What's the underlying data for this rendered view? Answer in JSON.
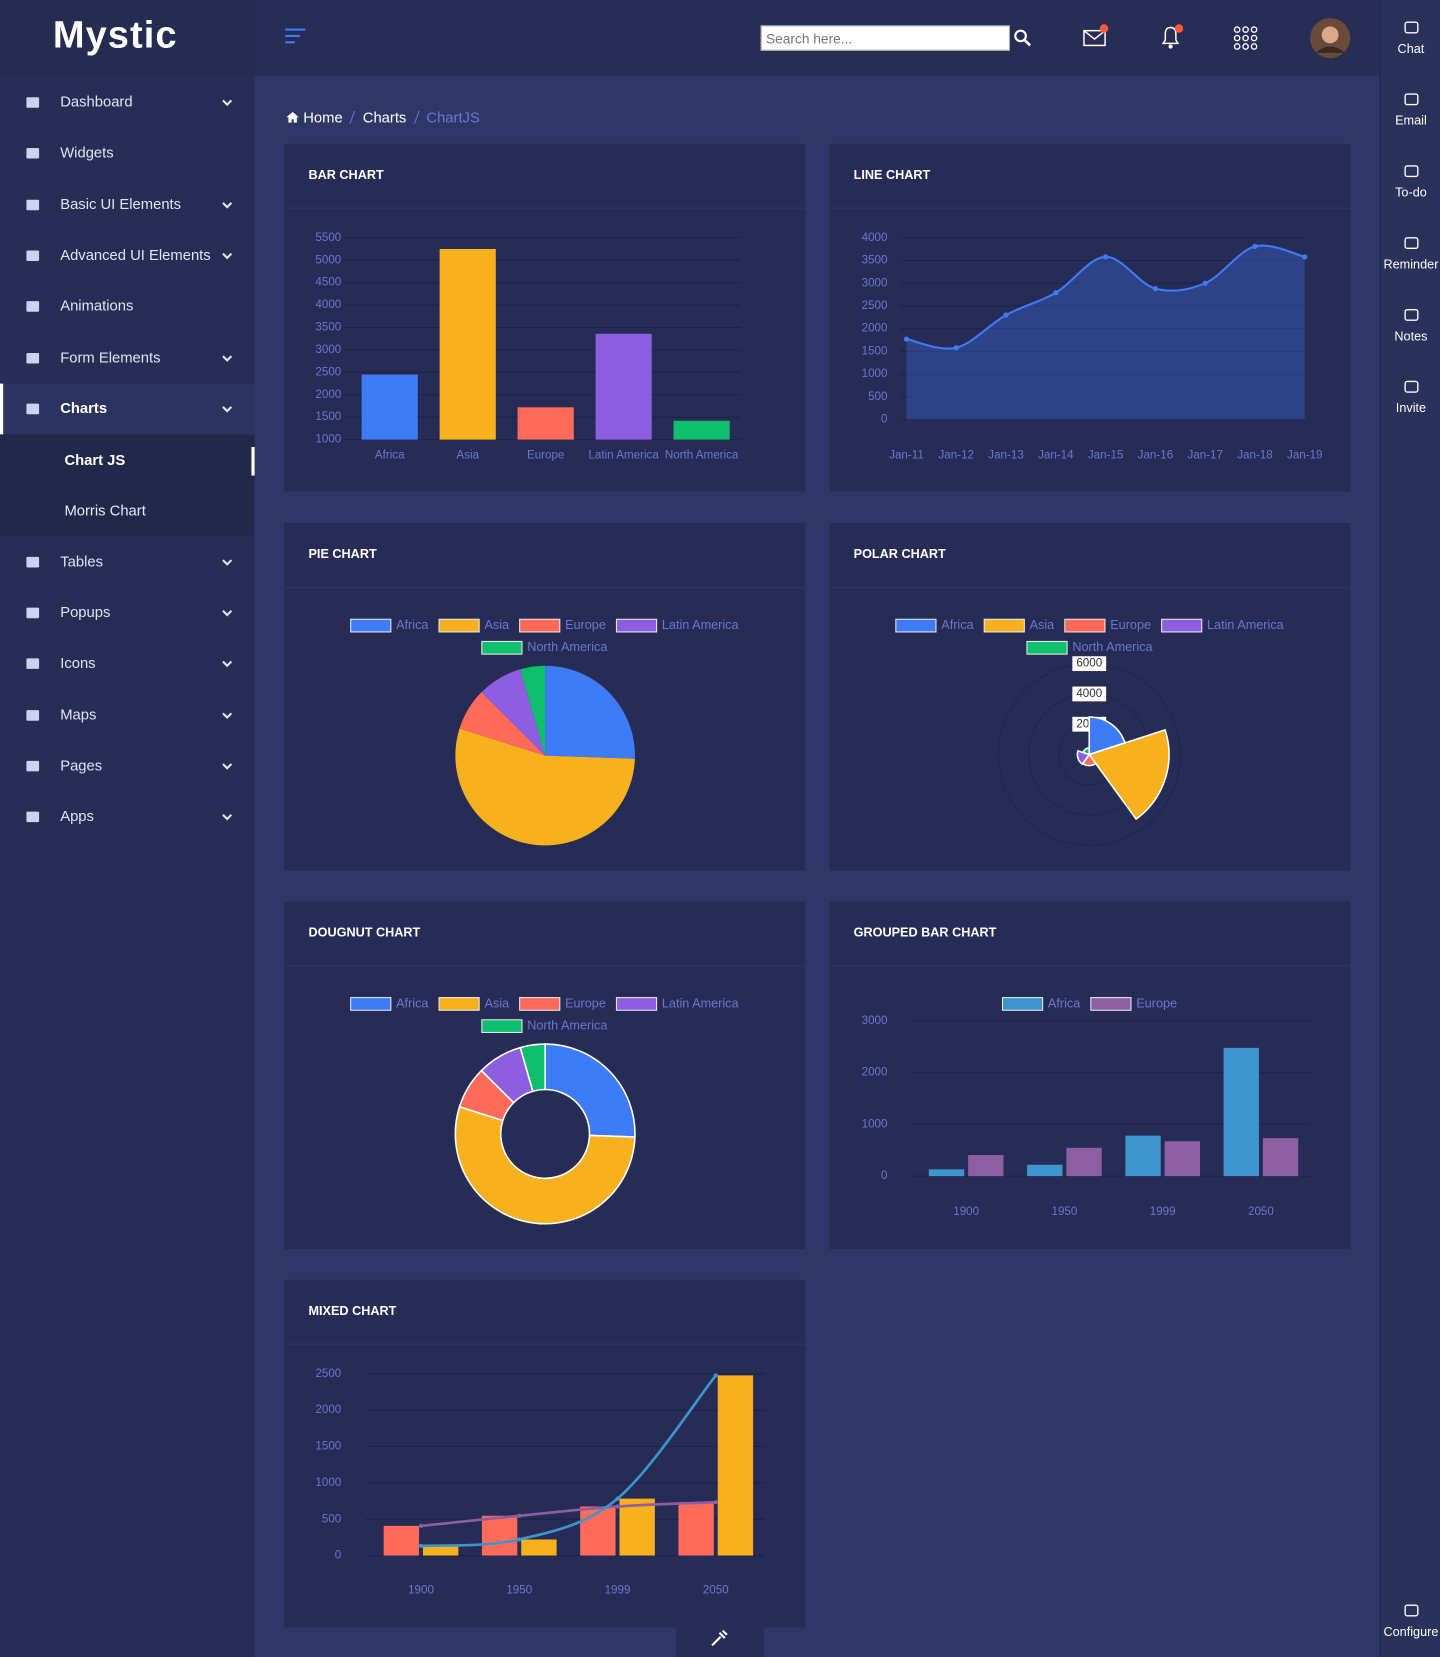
{
  "header": {
    "logo": "Mystic",
    "search_placeholder": "Search here..."
  },
  "sidebar": {
    "items": [
      "Dashboard",
      "Widgets",
      "Basic UI Elements",
      "Advanced UI Elements",
      "Animations",
      "Form Elements",
      "Charts",
      "Tables",
      "Popups",
      "Icons",
      "Maps",
      "Pages",
      "Apps"
    ],
    "submenu": [
      "Chart JS",
      "Morris Chart"
    ]
  },
  "breadcrumb": [
    "Home",
    "Charts",
    "ChartJS"
  ],
  "right_bar": [
    "Chat",
    "Email",
    "To-do",
    "Reminder",
    "Notes",
    "Invite",
    "Configure"
  ],
  "chart_data": [
    {
      "type": "bar",
      "title": "BAR CHART",
      "categories": [
        "Africa",
        "Asia",
        "Europe",
        "Latin America",
        "North America"
      ],
      "values": [
        2450,
        5250,
        1720,
        3360,
        1420
      ],
      "colors": [
        "#3e7bf7",
        "#f7b11e",
        "#ff6b5b",
        "#8e5ee0",
        "#0ebf6b"
      ],
      "ylim": [
        1000,
        5500
      ],
      "yticks": [
        1000,
        1500,
        2000,
        2500,
        3000,
        3500,
        4000,
        4500,
        5000,
        5500
      ],
      "grid": true
    },
    {
      "type": "line",
      "title": "LINE CHART",
      "categories": [
        "Jan-11",
        "Jan-12",
        "Jan-13",
        "Jan-14",
        "Jan-15",
        "Jan-16",
        "Jan-17",
        "Jan-18",
        "Jan-19"
      ],
      "values": [
        1770,
        1580,
        2300,
        2790,
        3580,
        2880,
        3000,
        3810,
        3580
      ],
      "color": "#3e7bf7",
      "fill": "rgba(62,110,230,0.35)",
      "ylim": [
        0,
        4000
      ],
      "yticks": [
        0,
        500,
        1000,
        1500,
        2000,
        2500,
        3000,
        3500,
        4000
      ],
      "grid": true
    },
    {
      "type": "pie",
      "title": "PIE CHART",
      "categories": [
        "Africa",
        "Asia",
        "Europe",
        "Latin America",
        "North America"
      ],
      "values": [
        2478,
        5267,
        734,
        784,
        433
      ],
      "colors": [
        "#3e7bf7",
        "#f7b11e",
        "#ff6b5b",
        "#8e5ee0",
        "#0ebf6b"
      ],
      "legend": "top"
    },
    {
      "type": "polar",
      "title": "POLAR CHART",
      "categories": [
        "Africa",
        "Asia",
        "Europe",
        "Latin America",
        "North America"
      ],
      "values": [
        2478,
        5267,
        734,
        784,
        433
      ],
      "colors": [
        "#3e7bf7",
        "#f7b11e",
        "#ff6b5b",
        "#8e5ee0",
        "#0ebf6b"
      ],
      "legend": "top",
      "rlim": [
        0,
        6000
      ],
      "rticks": [
        2000,
        4000,
        6000
      ]
    },
    {
      "type": "doughnut",
      "title": "DOUGNUT CHART",
      "categories": [
        "Africa",
        "Asia",
        "Europe",
        "Latin America",
        "North America"
      ],
      "values": [
        2478,
        5267,
        734,
        784,
        433
      ],
      "colors": [
        "#3e7bf7",
        "#f7b11e",
        "#ff6b5b",
        "#8e5ee0",
        "#0ebf6b"
      ],
      "legend": "top"
    },
    {
      "type": "grouped_bar",
      "title": "GROUPED BAR CHART",
      "categories": [
        "1900",
        "1950",
        "1999",
        "2050"
      ],
      "series": [
        {
          "name": "Africa",
          "color": "#3e95cd",
          "values": [
            133,
            221,
            783,
            2478
          ]
        },
        {
          "name": "Europe",
          "color": "#8e5ea2",
          "values": [
            408,
            547,
            675,
            734
          ]
        }
      ],
      "ylim": [
        0,
        3000
      ],
      "yticks": [
        0,
        1000,
        2000,
        3000
      ],
      "grid": true,
      "legend": "top"
    },
    {
      "type": "mixed",
      "title": "MIXED CHART",
      "categories": [
        "1900",
        "1950",
        "1999",
        "2050"
      ],
      "series": [
        {
          "type": "bar",
          "color": "#ff6b5b",
          "values": [
            408,
            547,
            675,
            734
          ]
        },
        {
          "type": "bar",
          "color": "#f7b11e",
          "values": [
            133,
            221,
            783,
            2478
          ]
        },
        {
          "type": "line",
          "color": "#8e5ea2",
          "values": [
            408,
            547,
            675,
            734
          ]
        },
        {
          "type": "line",
          "color": "#3e95cd",
          "values": [
            133,
            221,
            783,
            2478
          ]
        }
      ],
      "ylim": [
        0,
        2500
      ],
      "yticks": [
        0,
        500,
        1000,
        1500,
        2000,
        2500
      ],
      "grid": true
    }
  ]
}
